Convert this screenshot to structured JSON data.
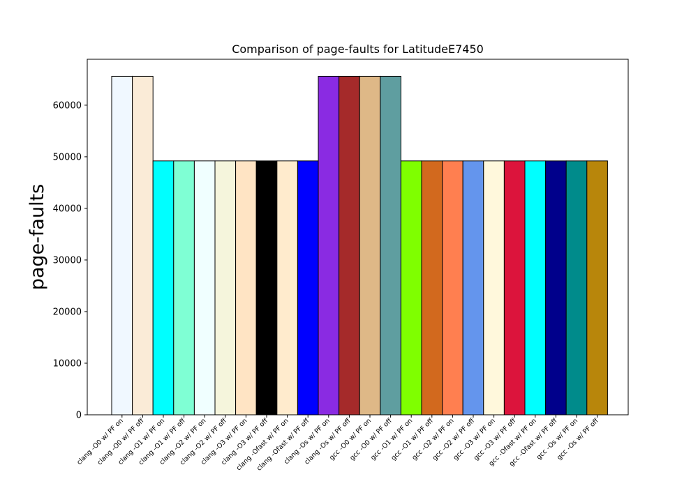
{
  "chart_data": {
    "type": "bar",
    "title": "Comparison of page-faults for LatitudeE7450",
    "xlabel": "",
    "ylabel": "page-faults",
    "ylim": [
      0,
      68900
    ],
    "yticks": [
      0,
      10000,
      20000,
      30000,
      40000,
      50000,
      60000
    ],
    "grid": false,
    "legend": "none",
    "categories": [
      "clang -O0 w/ PF on",
      "clang -O0 w/ PF off",
      "clang -O1 w/ PF on",
      "clang -O1 w/ PF off",
      "clang -O2 w/ PF on",
      "clang -O2 w/ PF off",
      "clang -O3 w/ PF on",
      "clang -O3 w/ PF off",
      "clang -Ofast w/ PF on",
      "clang -Ofast w/ PF off",
      "clang -Os w/ PF on",
      "clang -Os w/ PF off",
      "gcc -O0 w/ PF on",
      "gcc -O0 w/ PF off",
      "gcc -O1 w/ PF on",
      "gcc -O1 w/ PF off",
      "gcc -O2 w/ PF on",
      "gcc -O2 w/ PF off",
      "gcc -O3 w/ PF on",
      "gcc -O3 w/ PF off",
      "gcc -Ofast w/ PF on",
      "gcc -Ofast w/ PF off",
      "gcc -Os w/ PF on",
      "gcc -Os w/ PF off"
    ],
    "values": [
      65600,
      65600,
      49200,
      49200,
      49200,
      49200,
      49200,
      49200,
      49200,
      49200,
      65600,
      65600,
      65600,
      65600,
      49200,
      49200,
      49200,
      49200,
      49200,
      49200,
      49200,
      49200,
      49200,
      49200
    ],
    "colors": [
      "#f0f8ff",
      "#faebd7",
      "#00ffff",
      "#7fffd4",
      "#f0ffff",
      "#f5f5dc",
      "#ffe4c4",
      "#000000",
      "#ffebcd",
      "#0000ff",
      "#8a2be2",
      "#a52a2a",
      "#deb887",
      "#5f9ea0",
      "#7fff00",
      "#d2691e",
      "#ff7f50",
      "#6495ed",
      "#fff8dc",
      "#dc143c",
      "#00ffff",
      "#00008b",
      "#008b8b",
      "#b8860b"
    ]
  }
}
